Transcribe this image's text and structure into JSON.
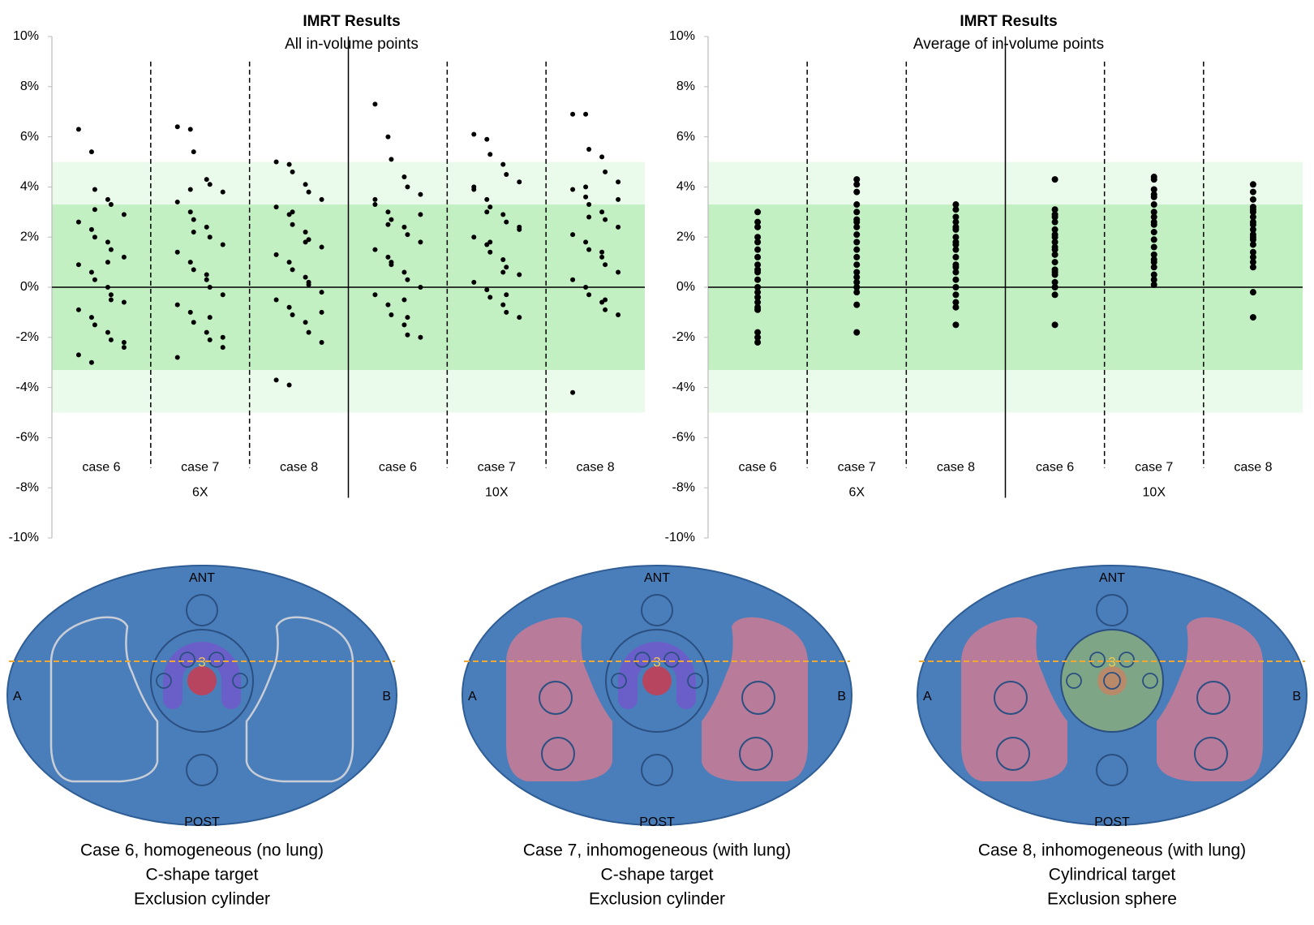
{
  "chart_data": [
    {
      "type": "scatter",
      "title": "IMRT Results",
      "subtitle": "All in-volume points",
      "categories": [
        "case 6",
        "case 7",
        "case 8",
        "case 6",
        "case 7",
        "case 8"
      ],
      "groups": [
        "6X",
        "10X"
      ],
      "ylim": [
        -10,
        10
      ],
      "yticks": [
        {
          "value": -10,
          "label": "-10%"
        },
        {
          "value": -8,
          "label": "-8%"
        },
        {
          "value": -6,
          "label": "-6%"
        },
        {
          "value": -4,
          "label": "-4%"
        },
        {
          "value": -2,
          "label": "-2%"
        },
        {
          "value": 0,
          "label": "0%"
        },
        {
          "value": 2,
          "label": "2%"
        },
        {
          "value": 4,
          "label": "4%"
        },
        {
          "value": 6,
          "label": "6%"
        },
        {
          "value": 8,
          "label": "8%"
        },
        {
          "value": 10,
          "label": "10%"
        }
      ],
      "bands": [
        {
          "from": -5,
          "to": 5,
          "color": "#ebfbeb"
        },
        {
          "from": -3.3,
          "to": 3.3,
          "color": "#c3f0c3"
        }
      ],
      "color": "#000000",
      "series": [
        {
          "values": [
            6.3,
            5.4,
            3.9,
            3.5,
            3.3,
            2.9,
            2.6,
            2.3,
            2.0,
            1.8,
            1.5,
            1.2,
            0.9,
            0.6,
            0.3,
            0.0,
            -0.3,
            -0.6,
            -0.9,
            -1.2,
            -1.5,
            -1.8,
            -2.1,
            -2.4,
            -2.7,
            -3.0,
            3.1,
            1.0,
            -0.5,
            -2.2
          ]
        },
        {
          "values": [
            6.4,
            6.3,
            5.4,
            4.3,
            4.1,
            3.8,
            3.4,
            3.0,
            2.7,
            2.4,
            2.0,
            1.7,
            1.4,
            1.0,
            0.7,
            0.3,
            0.0,
            -0.3,
            -0.7,
            -1.0,
            -1.4,
            -1.8,
            -2.1,
            -2.4,
            -2.8,
            3.9,
            2.2,
            0.5,
            -1.2,
            -2.0
          ]
        },
        {
          "values": [
            5.0,
            4.9,
            4.6,
            4.1,
            3.8,
            3.5,
            3.2,
            2.9,
            2.5,
            2.2,
            1.9,
            1.6,
            1.3,
            1.0,
            0.7,
            0.4,
            0.1,
            -0.2,
            -0.5,
            -0.8,
            -1.1,
            -1.4,
            -1.8,
            -2.2,
            -3.7,
            -3.9,
            3.0,
            1.8,
            0.2,
            -1.0
          ]
        },
        {
          "values": [
            7.3,
            6.0,
            5.1,
            4.4,
            4.0,
            3.7,
            3.3,
            3.0,
            2.7,
            2.4,
            2.1,
            1.8,
            1.5,
            1.2,
            0.9,
            0.6,
            0.3,
            0.0,
            -0.3,
            -0.7,
            -1.1,
            -1.5,
            -1.9,
            -2.0,
            3.5,
            2.5,
            1.0,
            -0.5,
            -1.2,
            2.9
          ]
        },
        {
          "values": [
            6.1,
            5.9,
            5.3,
            4.9,
            4.5,
            4.2,
            3.9,
            3.5,
            3.2,
            2.9,
            2.6,
            2.3,
            2.0,
            1.7,
            1.4,
            1.1,
            0.8,
            0.5,
            0.2,
            -0.1,
            -0.4,
            -0.7,
            -1.0,
            -1.2,
            4.0,
            3.0,
            1.8,
            0.6,
            -0.3,
            2.4
          ]
        },
        {
          "values": [
            6.9,
            6.9,
            5.5,
            5.2,
            4.6,
            4.2,
            3.9,
            3.6,
            3.3,
            3.0,
            2.7,
            2.4,
            2.1,
            1.8,
            1.5,
            1.2,
            0.9,
            0.6,
            0.3,
            0.0,
            -0.3,
            -0.6,
            -0.9,
            -1.1,
            -4.2,
            4.0,
            2.8,
            1.4,
            -0.5,
            3.5
          ]
        }
      ]
    },
    {
      "type": "scatter",
      "title": "IMRT Results",
      "subtitle": "Average of in-volume points",
      "categories": [
        "case 6",
        "case 7",
        "case 8",
        "case 6",
        "case 7",
        "case 8"
      ],
      "groups": [
        "6X",
        "10X"
      ],
      "ylim": [
        -10,
        10
      ],
      "yticks": [
        {
          "value": -10,
          "label": "-10%"
        },
        {
          "value": -8,
          "label": "-8%"
        },
        {
          "value": -6,
          "label": "-6%"
        },
        {
          "value": -4,
          "label": "-4%"
        },
        {
          "value": -2,
          "label": "-2%"
        },
        {
          "value": 0,
          "label": "0%"
        },
        {
          "value": 2,
          "label": "2%"
        },
        {
          "value": 4,
          "label": "4%"
        },
        {
          "value": 6,
          "label": "6%"
        },
        {
          "value": 8,
          "label": "8%"
        },
        {
          "value": 10,
          "label": "10%"
        }
      ],
      "bands": [
        {
          "from": -5,
          "to": 5,
          "color": "#ebfbeb"
        },
        {
          "from": -3.3,
          "to": 3.3,
          "color": "#c3f0c3"
        }
      ],
      "color": "#000000",
      "series": [
        {
          "values": [
            3.0,
            2.6,
            2.4,
            2.0,
            1.8,
            1.5,
            1.2,
            0.9,
            0.6,
            0.3,
            0.0,
            -0.2,
            -0.4,
            -0.6,
            -0.8,
            -0.9,
            -1.8,
            -2.0,
            -2.2,
            0.7
          ]
        },
        {
          "values": [
            4.3,
            4.1,
            3.8,
            3.3,
            3.0,
            2.7,
            2.4,
            2.1,
            1.8,
            1.5,
            1.2,
            0.9,
            0.6,
            0.4,
            0.2,
            0.0,
            -0.2,
            -0.7,
            -1.8,
            2.6
          ]
        },
        {
          "values": [
            3.3,
            3.1,
            2.8,
            2.6,
            2.3,
            2.0,
            1.8,
            1.5,
            1.2,
            0.9,
            0.6,
            0.3,
            0.0,
            -0.3,
            -0.6,
            -0.8,
            -1.5,
            1.7,
            2.4,
            0.8
          ]
        },
        {
          "values": [
            4.3,
            3.1,
            2.9,
            2.6,
            2.3,
            2.0,
            1.8,
            1.5,
            1.3,
            1.0,
            0.7,
            0.5,
            0.2,
            0.0,
            -0.3,
            -1.5,
            2.8,
            1.6,
            0.6,
            2.1
          ]
        },
        {
          "values": [
            4.4,
            4.3,
            3.9,
            3.6,
            3.3,
            3.0,
            2.8,
            2.5,
            2.2,
            1.9,
            1.6,
            1.3,
            1.1,
            0.8,
            0.5,
            0.3,
            0.1,
            3.7,
            2.6,
            1.0
          ]
        },
        {
          "values": [
            4.1,
            3.8,
            3.5,
            3.2,
            3.0,
            2.8,
            2.5,
            2.3,
            2.1,
            1.9,
            1.7,
            1.4,
            1.2,
            1.0,
            0.8,
            -0.2,
            -1.2,
            3.1,
            2.0,
            2.6
          ]
        }
      ]
    }
  ],
  "diagrams": [
    {
      "top": "ANT",
      "bottom": "POST",
      "left": "A",
      "right": "B",
      "target": "3",
      "caption": [
        "Case 6, homogeneous (no lung)",
        "C-shape target",
        "Exclusion cylinder"
      ]
    },
    {
      "top": "ANT",
      "bottom": "POST",
      "left": "A",
      "right": "B",
      "target": "3",
      "caption": [
        "Case 7, inhomogeneous (with lung)",
        "C-shape target",
        "Exclusion cylinder"
      ]
    },
    {
      "top": "ANT",
      "bottom": "POST",
      "left": "A",
      "right": "B",
      "target": "3",
      "caption": [
        "Case 8, inhomogeneous (with lung)",
        "Cylindrical target",
        "Exclusion sphere"
      ]
    }
  ]
}
